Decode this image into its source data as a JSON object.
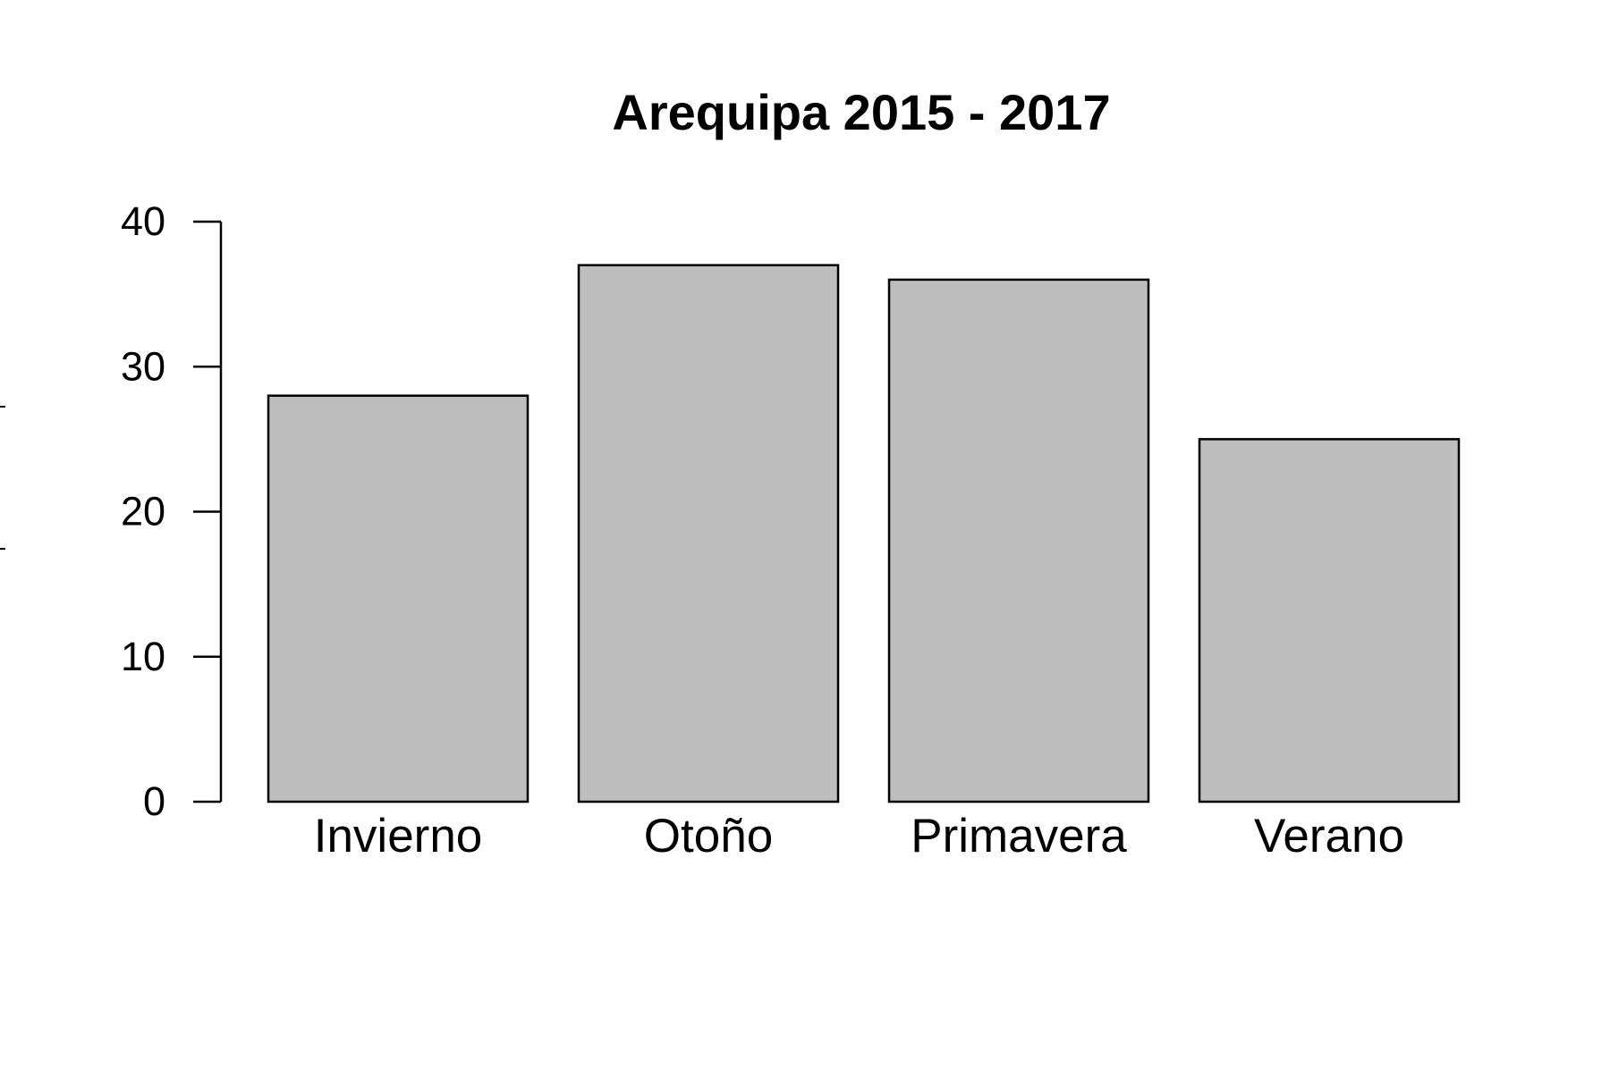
{
  "chart_data": {
    "type": "bar",
    "title": "Arequipa 2015 - 2017",
    "xlabel": "",
    "ylabel": "",
    "categories": [
      "Invierno",
      "Otoño",
      "Primavera",
      "Verano"
    ],
    "values": [
      28,
      37,
      36,
      25
    ],
    "ylim": [
      0,
      40
    ],
    "yticks": [
      0,
      10,
      20,
      30,
      40
    ],
    "ytick_labels": [
      "0",
      "10",
      "20",
      "30",
      "40"
    ],
    "grid": false,
    "legend": "none",
    "colors": {
      "bar_fill": "#bebebe",
      "bar_stroke": "#000000",
      "axis": "#000000"
    }
  }
}
